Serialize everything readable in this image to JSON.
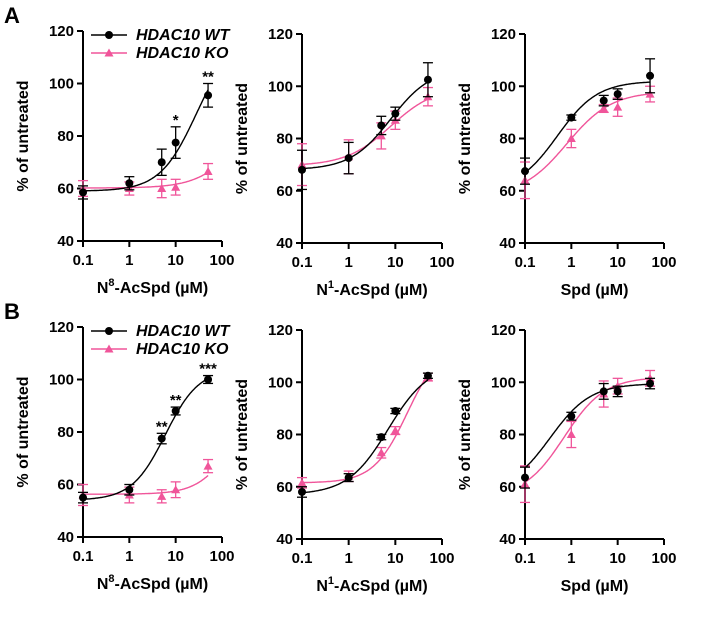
{
  "colors": {
    "wt": "#000000",
    "ko": "#f0559a"
  },
  "chart_data": [
    {
      "type": "scatter",
      "row_label": "A",
      "xlabel": "N8-AcSpd (µM)",
      "xlabel_parts": [
        "N",
        "8",
        "-AcSpd (µM)"
      ],
      "ylabel": "% of untreated",
      "xscale": "log",
      "xlim": [
        0.1,
        100
      ],
      "ylim": [
        40,
        120
      ],
      "xticks": [
        "0.1",
        "1",
        "10",
        "100"
      ],
      "yticks": [
        "40",
        "60",
        "80",
        "100",
        "120"
      ],
      "legend": [
        "HDAC10 WT",
        "HDAC10 KO"
      ],
      "x": [
        0.1,
        1,
        5,
        10,
        50
      ],
      "series": [
        {
          "name": "HDAC10 WT",
          "values": [
            58.5,
            62,
            70,
            77.5,
            95.5
          ],
          "errors": [
            2.5,
            2.5,
            5,
            6,
            4.5
          ],
          "fit": {
            "bottom": 59,
            "top": 118,
            "ec50": 28,
            "hill": 1.1
          }
        },
        {
          "name": "HDAC10 KO",
          "values": [
            60,
            60,
            60,
            60.5,
            66.5
          ],
          "errors": [
            3,
            2.5,
            3.5,
            3,
            3
          ],
          "fit": {
            "bottom": 60.2,
            "top": 90,
            "ec50": 200,
            "hill": 1
          }
        }
      ],
      "annotations": [
        {
          "x": 10,
          "text": "*"
        },
        {
          "x": 50,
          "text": "**"
        }
      ]
    },
    {
      "type": "scatter",
      "xlabel": "N1-AcSpd (µM)",
      "xlabel_parts": [
        "N",
        "1",
        "-AcSpd (µM)"
      ],
      "ylabel": "% of untreated",
      "xscale": "log",
      "xlim": [
        0.1,
        100
      ],
      "ylim": [
        40,
        120
      ],
      "xticks": [
        "0.1",
        "1",
        "10",
        "100"
      ],
      "yticks": [
        "40",
        "60",
        "80",
        "100",
        "120"
      ],
      "x": [
        0.1,
        1,
        5,
        10,
        50
      ],
      "series": [
        {
          "name": "HDAC10 WT",
          "values": [
            68,
            72.5,
            85,
            89.5,
            102.5
          ],
          "errors": [
            7.5,
            6,
            3.5,
            2.5,
            6.5
          ],
          "fit": {
            "bottom": 68,
            "top": 107,
            "ec50": 8,
            "hill": 1
          }
        },
        {
          "name": "HDAC10 KO",
          "values": [
            70,
            73,
            81,
            87,
            96
          ],
          "errors": [
            8,
            6.5,
            5,
            3.5,
            3.5
          ],
          "fit": {
            "bottom": 69.5,
            "top": 100,
            "ec50": 8,
            "hill": 0.9
          }
        }
      ],
      "annotations": []
    },
    {
      "type": "scatter",
      "xlabel": "Spd (µM)",
      "xlabel_parts": [
        "Spd (µM)",
        "",
        ""
      ],
      "ylabel": "% of untreated",
      "xscale": "log",
      "xlim": [
        0.1,
        100
      ],
      "ylim": [
        40,
        120
      ],
      "xticks": [
        "0.1",
        "1",
        "10",
        "100"
      ],
      "yticks": [
        "40",
        "60",
        "80",
        "100",
        "120"
      ],
      "x": [
        0.1,
        1,
        5,
        10,
        50
      ],
      "series": [
        {
          "name": "HDAC10 WT",
          "values": [
            67.5,
            88,
            94.5,
            97,
            104
          ],
          "errors": [
            5,
            1,
            2,
            2,
            6.5
          ],
          "fit": {
            "bottom": 60,
            "top": 102,
            "ec50": 0.5,
            "hill": 1
          }
        },
        {
          "name": "HDAC10 KO",
          "values": [
            64,
            80,
            91.5,
            92,
            97
          ],
          "errors": [
            7,
            3.5,
            1.5,
            3.5,
            3
          ],
          "fit": {
            "bottom": 58,
            "top": 98,
            "ec50": 0.8,
            "hill": 0.9
          }
        }
      ],
      "annotations": []
    },
    {
      "type": "scatter",
      "row_label": "B",
      "xlabel": "N8-AcSpd (µM)",
      "xlabel_parts": [
        "N",
        "8",
        "-AcSpd (µM)"
      ],
      "ylabel": "% of untreated",
      "xscale": "log",
      "xlim": [
        0.1,
        100
      ],
      "ylim": [
        40,
        120
      ],
      "xticks": [
        "0.1",
        "1",
        "10",
        "100"
      ],
      "yticks": [
        "40",
        "60",
        "80",
        "100",
        "120"
      ],
      "legend": [
        "HDAC10 WT",
        "HDAC10 KO"
      ],
      "x": [
        0.1,
        1,
        5,
        10,
        50
      ],
      "series": [
        {
          "name": "HDAC10 WT",
          "values": [
            55,
            58,
            77.5,
            88,
            100
          ],
          "errors": [
            2,
            2,
            2,
            1.5,
            1.5
          ],
          "fit": {
            "bottom": 54,
            "top": 104,
            "ec50": 6,
            "hill": 1.2
          }
        },
        {
          "name": "HDAC10 KO",
          "values": [
            56,
            56,
            55.5,
            58,
            67
          ],
          "errors": [
            4,
            3,
            2.5,
            3,
            2.5
          ],
          "fit": {
            "bottom": 56.3,
            "top": 90,
            "ec50": 150,
            "hill": 1.2
          }
        }
      ],
      "annotations": [
        {
          "x": 5,
          "text": "**"
        },
        {
          "x": 10,
          "text": "**"
        },
        {
          "x": 50,
          "text": "***"
        }
      ]
    },
    {
      "type": "scatter",
      "xlabel": "N1-AcSpd (µM)",
      "xlabel_parts": [
        "N",
        "1",
        "-AcSpd (µM)"
      ],
      "ylabel": "% of untreated",
      "xscale": "log",
      "xlim": [
        0.1,
        100
      ],
      "ylim": [
        40,
        120
      ],
      "xticks": [
        "0.1",
        "1",
        "10",
        "100"
      ],
      "yticks": [
        "40",
        "60",
        "80",
        "100",
        "120"
      ],
      "x": [
        0.1,
        1,
        5,
        10,
        50
      ],
      "series": [
        {
          "name": "HDAC10 WT",
          "values": [
            58,
            63.5,
            79,
            89,
            102.5
          ],
          "errors": [
            2,
            1.5,
            1,
            1,
            1
          ],
          "fit": {
            "bottom": 57,
            "top": 107,
            "ec50": 7,
            "hill": 1
          }
        },
        {
          "name": "HDAC10 KO",
          "values": [
            61.5,
            64,
            73,
            81.5,
            102
          ],
          "errors": [
            2,
            2,
            2,
            1.5,
            1.5
          ],
          "fit": {
            "bottom": 61.5,
            "top": 115,
            "ec50": 18,
            "hill": 1.2
          }
        }
      ],
      "annotations": []
    },
    {
      "type": "scatter",
      "xlabel": "Spd (µM)",
      "xlabel_parts": [
        "Spd (µM)",
        "",
        ""
      ],
      "ylabel": "% of untreated",
      "xscale": "log",
      "xlim": [
        0.1,
        100
      ],
      "ylim": [
        40,
        120
      ],
      "xticks": [
        "0.1",
        "1",
        "10",
        "100"
      ],
      "yticks": [
        "40",
        "60",
        "80",
        "100",
        "120"
      ],
      "x": [
        0.1,
        1,
        5,
        10,
        50
      ],
      "series": [
        {
          "name": "HDAC10 WT",
          "values": [
            63.5,
            87,
            96.5,
            96.5,
            99.5
          ],
          "errors": [
            4,
            1.5,
            3,
            2,
            2
          ],
          "fit": {
            "bottom": 58,
            "top": 99.5,
            "ec50": 0.35,
            "hill": 1
          }
        },
        {
          "name": "HDAC10 KO",
          "values": [
            61,
            80,
            95.5,
            98.5,
            101.5
          ],
          "errors": [
            7,
            5,
            5,
            3,
            3
          ],
          "fit": {
            "bottom": 56,
            "top": 102,
            "ec50": 0.7,
            "hill": 1
          }
        }
      ],
      "annotations": []
    }
  ]
}
